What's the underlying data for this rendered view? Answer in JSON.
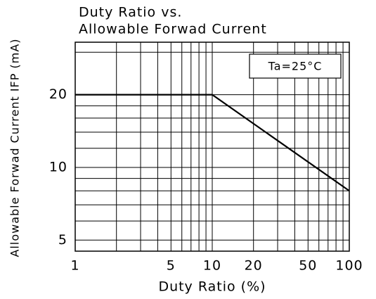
{
  "chart_data": {
    "type": "line",
    "title": [
      "Duty Ratio vs.",
      "Allowable Forwad Current"
    ],
    "x_label": "Duty Ratio   (%)",
    "y_label": "Allowable Forwad Current IFP (mA)",
    "annotation": "Ta=25°C",
    "x": [
      1,
      10,
      100
    ],
    "series": [
      {
        "name": "IFP",
        "color": "#000000",
        "values": [
          20,
          20,
          8
        ]
      }
    ],
    "xscale": "log",
    "yscale": "log",
    "xlim": [
      1,
      100
    ],
    "xticks": [
      1,
      5,
      10,
      20,
      50,
      100
    ],
    "ylim": [
      4.5,
      33
    ],
    "yticks": [
      5,
      10,
      20
    ],
    "xgrid": [
      2,
      3,
      4,
      5,
      6,
      7,
      8,
      9,
      10,
      20,
      30,
      40,
      50,
      60,
      70,
      80,
      90
    ],
    "ygrid": [
      5,
      6,
      7,
      8,
      9,
      10,
      12,
      14,
      16,
      18,
      20,
      30
    ],
    "grid": true
  }
}
